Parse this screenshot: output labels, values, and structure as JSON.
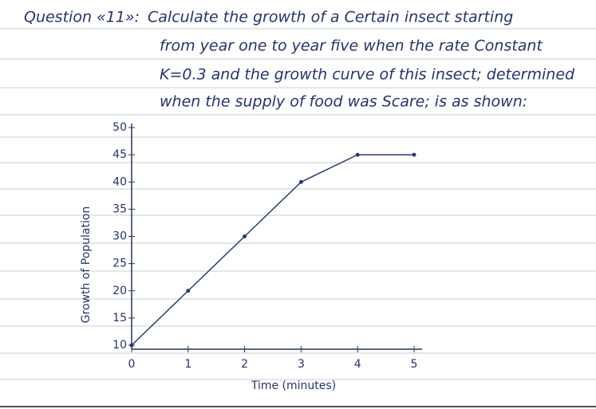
{
  "chart_data": {
    "type": "line",
    "title": "Question «11»:",
    "subtitle": [
      "Calculate the growth of a Certain insect starting",
      "from year one to year five when the rate Constant",
      "K=0.3 and the growth curve of this insect; determined",
      "when the supply of food was Scare; is as shown:"
    ],
    "x_label": "Time (minutes)",
    "y_label": "Growth of Population",
    "x": [
      0,
      1,
      2,
      3,
      4,
      5
    ],
    "series": [
      {
        "color": "#2b3a78",
        "values": [
          10,
          20,
          30,
          40,
          45,
          45
        ]
      }
    ],
    "xlim": [
      0,
      5
    ],
    "xticks": [
      0,
      1,
      2,
      3,
      4,
      5
    ],
    "ylim": [
      10,
      50
    ],
    "yticks": [
      10,
      15,
      20,
      25,
      30,
      35,
      40,
      45,
      50
    ]
  }
}
